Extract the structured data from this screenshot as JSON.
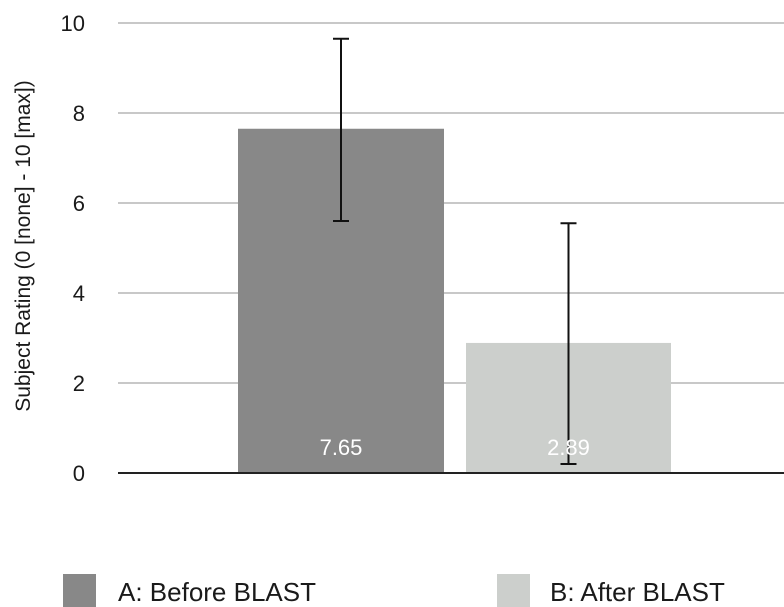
{
  "chart_data": {
    "type": "bar",
    "ylabel": "Subject Rating (0 [none] - 10 [max])",
    "ylim": [
      0,
      10
    ],
    "yticks": [
      0,
      2,
      4,
      6,
      8,
      10
    ],
    "grid": true,
    "legend_position": "bottom",
    "series": [
      {
        "name": "A: Before BLAST",
        "value": 7.65,
        "value_label": "7.65",
        "error_low": 5.6,
        "error_high": 9.65,
        "color": "#888888"
      },
      {
        "name": "B: After BLAST",
        "value": 2.89,
        "value_label": "2.89",
        "error_low": 0.2,
        "error_high": 5.55,
        "color": "#cccfcc"
      }
    ]
  }
}
